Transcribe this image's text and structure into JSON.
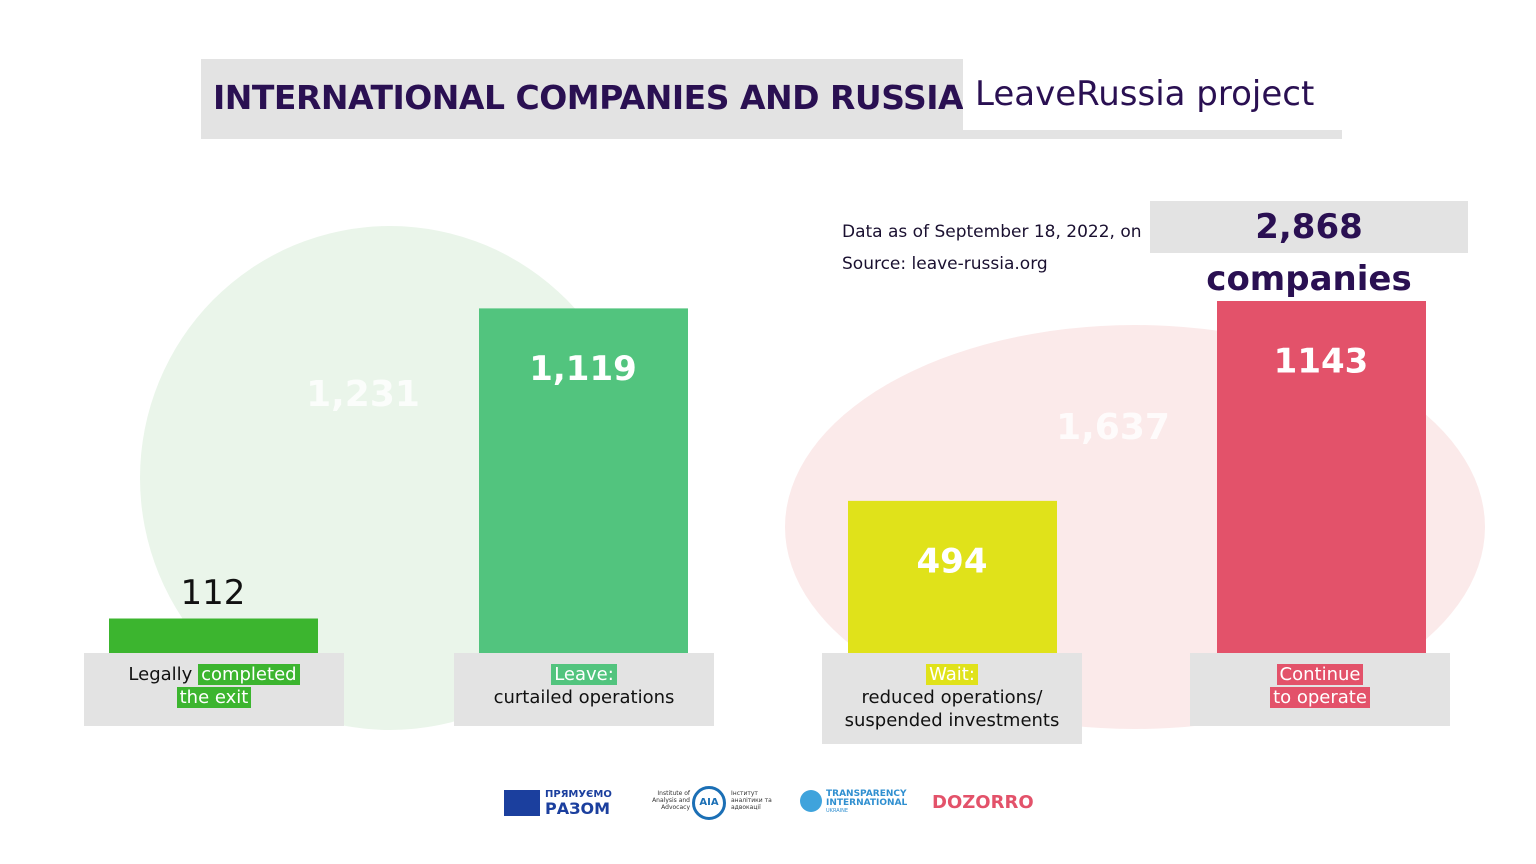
{
  "header": {
    "title": "INTERNATIONAL COMPANIES AND RUSSIA:",
    "subtitle": "LeaveRussia project"
  },
  "info": {
    "date_note": "Data as of September 18, 2022, on",
    "total": "2,868 companies",
    "source": "Source:  leave-russia.org"
  },
  "chart_data": {
    "type": "bar",
    "categories": [
      [
        [
          {
            "text": "Legally"
          },
          {
            "text": "completed",
            "mark": true
          }
        ],
        [
          {
            "text": "the exit",
            "mark": true
          }
        ]
      ],
      [
        [
          {
            "text": "Leave:",
            "mark": true
          }
        ],
        [
          {
            "text": "curtailed operations"
          }
        ]
      ],
      [
        [
          {
            "text": "Wait:",
            "mark": true
          }
        ],
        [
          {
            "text": "reduced operations/"
          }
        ],
        [
          {
            "text": "suspended investments"
          }
        ]
      ],
      [
        [
          {
            "text": "Continue",
            "mark": true
          }
        ],
        [
          {
            "text": "to operate",
            "mark": true
          }
        ]
      ]
    ],
    "values": [
      112,
      1119,
      494,
      1143
    ],
    "value_labels": [
      "112",
      "1,119",
      "494",
      "1143"
    ],
    "colors": [
      "#3cb52f",
      "#52c47e",
      "#e0e21a",
      "#e3526a"
    ],
    "groups": [
      {
        "value": 1231,
        "label": "1,231",
        "color": "#eaf5ea"
      },
      {
        "value": 1637,
        "label": "1,637",
        "color": "#fbeaea"
      }
    ]
  },
  "logos": [
    "ПРЯМУЄМО",
    "РАЗОМ",
    "Institute of Analysis and Advocacy",
    "AIA",
    "Інститут аналітики та адвокації",
    "TRANSPARENCY",
    "INTERNATIONAL",
    "UKRAINE",
    "DOZORRO"
  ]
}
